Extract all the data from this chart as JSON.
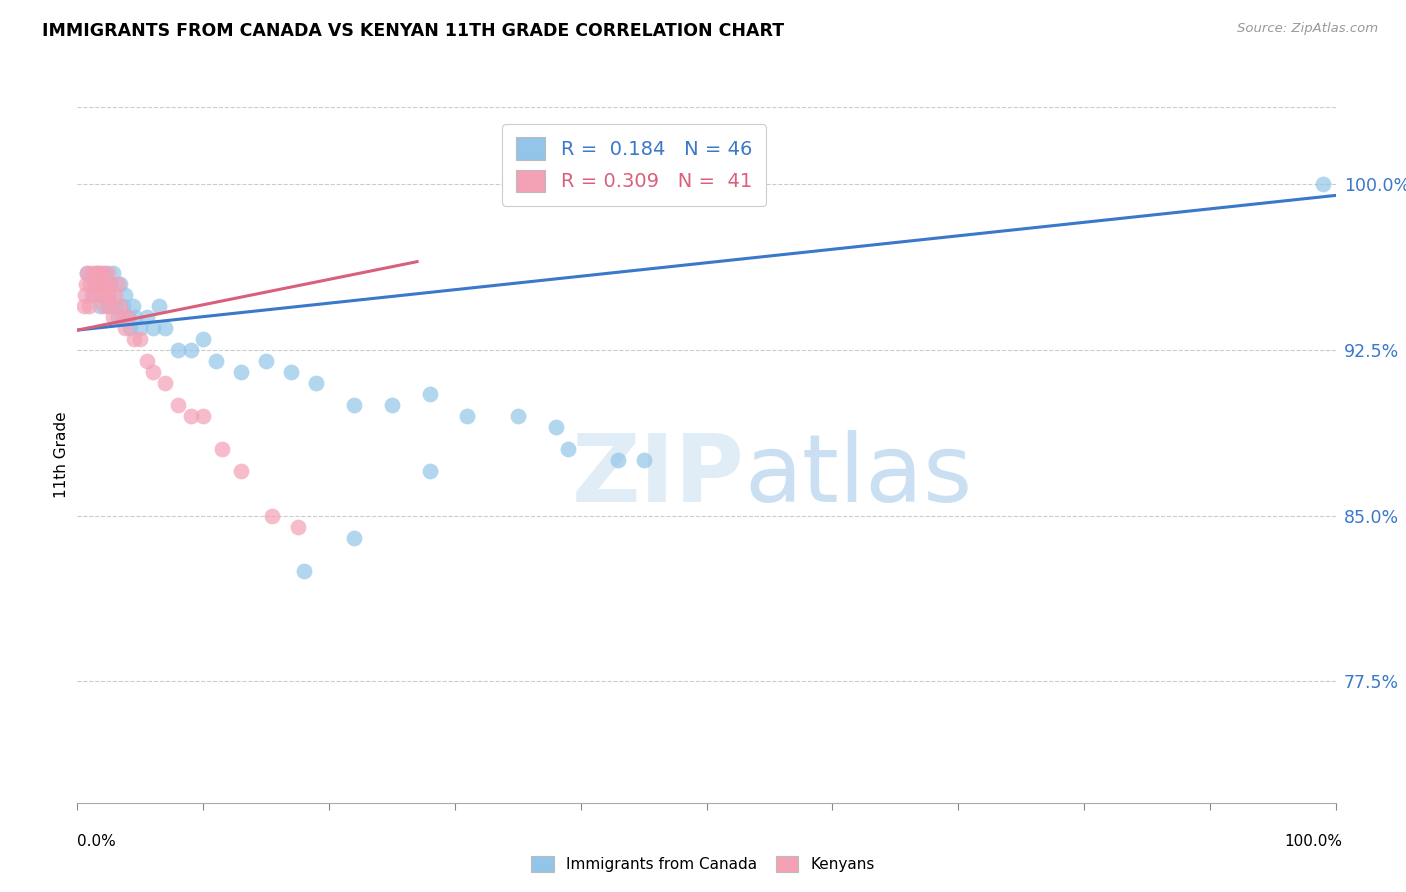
{
  "title": "IMMIGRANTS FROM CANADA VS KENYAN 11TH GRADE CORRELATION CHART",
  "source": "Source: ZipAtlas.com",
  "ylabel": "11th Grade",
  "ytick_labels": [
    "100.0%",
    "92.5%",
    "85.0%",
    "77.5%"
  ],
  "ytick_values": [
    1.0,
    0.925,
    0.85,
    0.775
  ],
  "xlim": [
    0.0,
    1.0
  ],
  "ylim": [
    0.72,
    1.035
  ],
  "blue_color": "#92C5E8",
  "pink_color": "#F4A0B5",
  "blue_line_color": "#3A78C9",
  "pink_line_color": "#D9607A",
  "watermark_zip": "ZIP",
  "watermark_atlas": "atlas",
  "blue_scatter_x": [
    0.008,
    0.012,
    0.014,
    0.016,
    0.018,
    0.02,
    0.022,
    0.024,
    0.025,
    0.026,
    0.028,
    0.03,
    0.032,
    0.034,
    0.036,
    0.038,
    0.04,
    0.042,
    0.044,
    0.046,
    0.05,
    0.055,
    0.06,
    0.065,
    0.07,
    0.08,
    0.09,
    0.1,
    0.11,
    0.13,
    0.15,
    0.17,
    0.19,
    0.22,
    0.25,
    0.28,
    0.31,
    0.35,
    0.38,
    0.43,
    0.45,
    0.39,
    0.28,
    0.22,
    0.18,
    0.99
  ],
  "blue_scatter_y": [
    0.96,
    0.95,
    0.955,
    0.96,
    0.945,
    0.955,
    0.96,
    0.945,
    0.95,
    0.955,
    0.96,
    0.945,
    0.94,
    0.955,
    0.945,
    0.95,
    0.94,
    0.935,
    0.945,
    0.94,
    0.935,
    0.94,
    0.935,
    0.945,
    0.935,
    0.925,
    0.925,
    0.93,
    0.92,
    0.915,
    0.92,
    0.915,
    0.91,
    0.9,
    0.9,
    0.905,
    0.895,
    0.895,
    0.89,
    0.875,
    0.875,
    0.88,
    0.87,
    0.84,
    0.825,
    1.0
  ],
  "pink_scatter_x": [
    0.005,
    0.006,
    0.007,
    0.008,
    0.009,
    0.01,
    0.012,
    0.013,
    0.014,
    0.015,
    0.016,
    0.017,
    0.018,
    0.019,
    0.02,
    0.021,
    0.022,
    0.023,
    0.024,
    0.025,
    0.026,
    0.027,
    0.028,
    0.03,
    0.032,
    0.034,
    0.036,
    0.038,
    0.04,
    0.045,
    0.05,
    0.055,
    0.06,
    0.07,
    0.08,
    0.09,
    0.1,
    0.115,
    0.13,
    0.155,
    0.175
  ],
  "pink_scatter_y": [
    0.945,
    0.95,
    0.955,
    0.96,
    0.945,
    0.955,
    0.96,
    0.95,
    0.955,
    0.96,
    0.955,
    0.96,
    0.95,
    0.955,
    0.96,
    0.945,
    0.95,
    0.955,
    0.96,
    0.95,
    0.955,
    0.945,
    0.94,
    0.95,
    0.955,
    0.945,
    0.94,
    0.935,
    0.94,
    0.93,
    0.93,
    0.92,
    0.915,
    0.91,
    0.9,
    0.895,
    0.895,
    0.88,
    0.87,
    0.85,
    0.845
  ],
  "blue_line_x": [
    0.0,
    1.0
  ],
  "blue_line_y": [
    0.934,
    0.995
  ],
  "pink_line_x": [
    0.0,
    0.27
  ],
  "pink_line_y": [
    0.934,
    0.965
  ]
}
